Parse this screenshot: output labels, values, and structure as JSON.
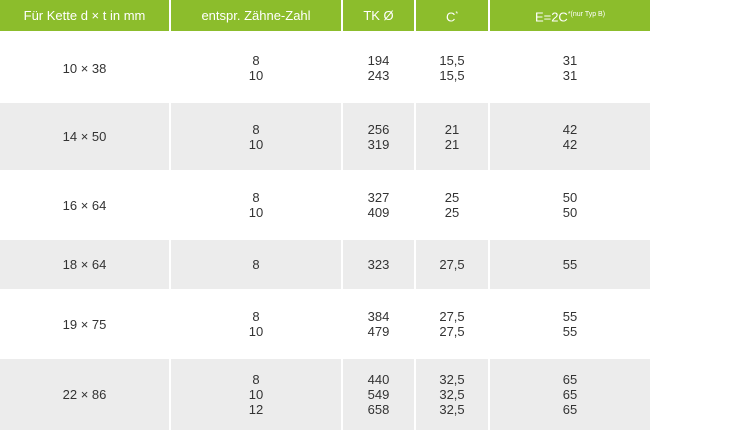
{
  "header": {
    "col0": "Für Kette d × t in mm",
    "col1": "entspr. Zähne-Zahl",
    "col2": "TK Ø",
    "col3": "C",
    "col3_sup": "*",
    "col4": "E=2C",
    "col4_sup": "*(nur Typ B)"
  },
  "colors": {
    "header_bg": "#8cbd2c",
    "alt_row_bg": "#ececec"
  },
  "rows": [
    {
      "size": "10 × 38",
      "teeth": [
        "8",
        "10"
      ],
      "tk": [
        "194",
        "243"
      ],
      "c": [
        "15,5",
        "15,5"
      ],
      "e": [
        "31",
        "31"
      ]
    },
    {
      "size": "14 × 50",
      "teeth": [
        "8",
        "10"
      ],
      "tk": [
        "256",
        "319"
      ],
      "c": [
        "21",
        "21"
      ],
      "e": [
        "42",
        "42"
      ]
    },
    {
      "size": "16 × 64",
      "teeth": [
        "8",
        "10"
      ],
      "tk": [
        "327",
        "409"
      ],
      "c": [
        "25",
        "25"
      ],
      "e": [
        "50",
        "50"
      ]
    },
    {
      "size": "18 × 64",
      "teeth": [
        "8"
      ],
      "tk": [
        "323"
      ],
      "c": [
        "27,5"
      ],
      "e": [
        "55"
      ]
    },
    {
      "size": "19 × 75",
      "teeth": [
        "8",
        "10"
      ],
      "tk": [
        "384",
        "479"
      ],
      "c": [
        "27,5",
        "27,5"
      ],
      "e": [
        "55",
        "55"
      ]
    },
    {
      "size": "22 × 86",
      "teeth": [
        "8",
        "10",
        "12"
      ],
      "tk": [
        "440",
        "549",
        "658"
      ],
      "c": [
        "32,5",
        "32,5",
        "32,5"
      ],
      "e": [
        "65",
        "65",
        "65"
      ]
    }
  ]
}
